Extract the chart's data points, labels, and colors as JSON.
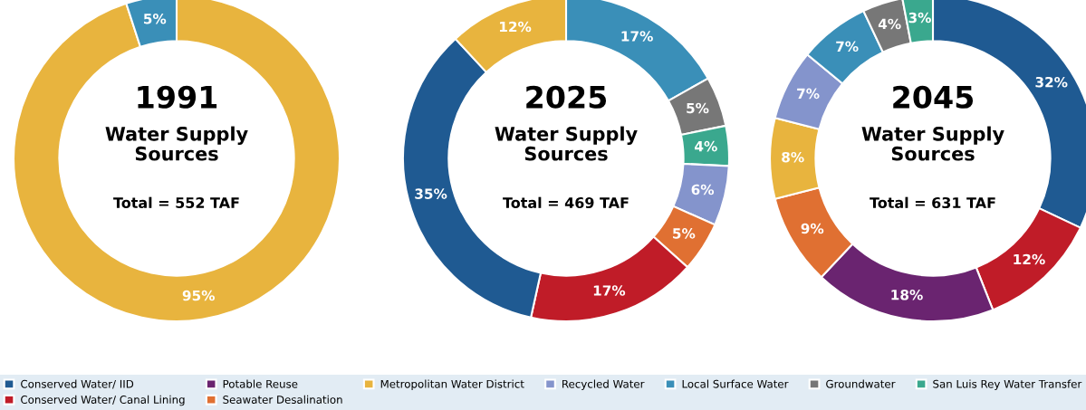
{
  "chart_data": [
    {
      "type": "donut",
      "title": "1991",
      "subtitle": "Water Supply\nSources",
      "annotations": [
        "Total = 552 TAF"
      ],
      "categories": [
        null,
        null
      ],
      "values": [
        95,
        5
      ],
      "value_labels": [
        "95%",
        "5%"
      ],
      "colors": [
        "#e8b43e",
        "#3a8fb8"
      ]
    },
    {
      "type": "donut",
      "title": "2025",
      "subtitle": "Water Supply\nSources",
      "annotations": [
        "Total = 469 TAF"
      ],
      "categories": [
        null,
        null,
        null,
        null,
        null,
        null,
        null,
        null
      ],
      "values": [
        17,
        5,
        4,
        6,
        5,
        17,
        35,
        12
      ],
      "value_labels": [
        "17%",
        "5%",
        "4%",
        "6%",
        "5%",
        "17%",
        "35%",
        "12%"
      ],
      "colors": [
        "#3a8fb8",
        "#777777",
        "#3aa88e",
        "#8494cc",
        "#e07032",
        "#c01c28",
        "#1f5a92",
        "#e8b43e"
      ]
    },
    {
      "type": "donut",
      "title": "2045",
      "subtitle": "Water Supply\nSources",
      "annotations": [
        "Total = 631 TAF"
      ],
      "legend": "bottom",
      "categories": [
        "Conserved Water/ IID",
        "Conserved Water/ Canal Lining",
        "Potable Reuse",
        "Seawater Desalination",
        "Metropolitan Water District",
        "Recycled Water",
        "Local Surface Water",
        "Groundwater",
        "San Luis Rey Water Transfer"
      ],
      "values": [
        32,
        12,
        18,
        9,
        8,
        7,
        7,
        4,
        3
      ],
      "value_labels": [
        "32%",
        "12%",
        "18%",
        "9%",
        "8%",
        "7%",
        "7%",
        "4%",
        "3%"
      ],
      "colors": [
        "#1f5a92",
        "#c01c28",
        "#6a2470",
        "#e07032",
        "#e8b43e",
        "#8494cc",
        "#3a8fb8",
        "#777777",
        "#3aa88e"
      ]
    }
  ]
}
